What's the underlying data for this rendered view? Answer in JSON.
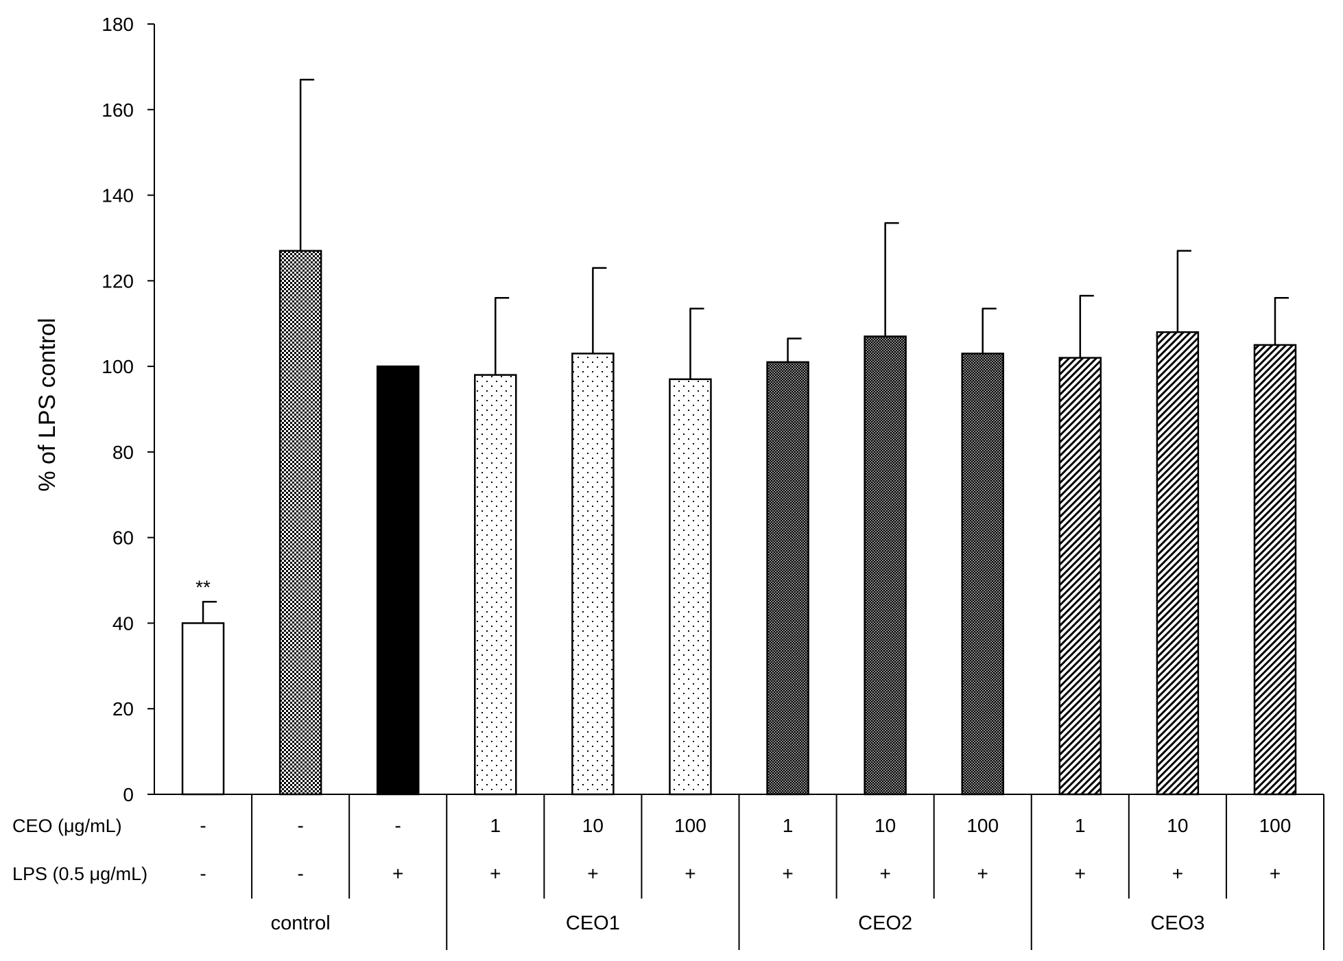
{
  "chart_data": {
    "type": "bar",
    "title": "",
    "xlabel": "",
    "ylabel": "% of LPS control",
    "ylim": [
      0,
      180
    ],
    "yticks": [
      0,
      20,
      40,
      60,
      80,
      100,
      120,
      140,
      160,
      180
    ],
    "grid": false,
    "legend": "none",
    "bars": [
      {
        "value": 40,
        "error": 5,
        "annotation": "**",
        "pattern": "white"
      },
      {
        "value": 127,
        "error": 40,
        "annotation": "",
        "pattern": "checker"
      },
      {
        "value": 100,
        "error": 0,
        "annotation": "",
        "pattern": "black"
      },
      {
        "value": 98,
        "error": 18,
        "annotation": "",
        "pattern": "dots"
      },
      {
        "value": 103,
        "error": 20,
        "annotation": "",
        "pattern": "dots"
      },
      {
        "value": 97,
        "error": 16.5,
        "annotation": "",
        "pattern": "dots"
      },
      {
        "value": 101,
        "error": 5.5,
        "annotation": "",
        "pattern": "dense"
      },
      {
        "value": 107,
        "error": 26.5,
        "annotation": "",
        "pattern": "dense"
      },
      {
        "value": 103,
        "error": 10.5,
        "annotation": "",
        "pattern": "dense"
      },
      {
        "value": 102,
        "error": 14.5,
        "annotation": "",
        "pattern": "diag"
      },
      {
        "value": 108,
        "error": 19,
        "annotation": "",
        "pattern": "diag"
      },
      {
        "value": 105,
        "error": 11,
        "annotation": "",
        "pattern": "diag"
      }
    ],
    "table": {
      "rows": [
        {
          "label": "CEO (μg/mL)",
          "cells": [
            "-",
            "-",
            "-",
            "1",
            "10",
            "100",
            "1",
            "10",
            "100",
            "1",
            "10",
            "100"
          ]
        },
        {
          "label": "LPS (0.5 μg/mL)",
          "cells": [
            "-",
            "-",
            "+",
            "+",
            "+",
            "+",
            "+",
            "+",
            "+",
            "+",
            "+",
            "+"
          ]
        }
      ],
      "groups": [
        {
          "label": "control",
          "span": 3
        },
        {
          "label": "CEO1",
          "span": 3
        },
        {
          "label": "CEO2",
          "span": 3
        },
        {
          "label": "CEO3",
          "span": 3
        }
      ]
    }
  }
}
